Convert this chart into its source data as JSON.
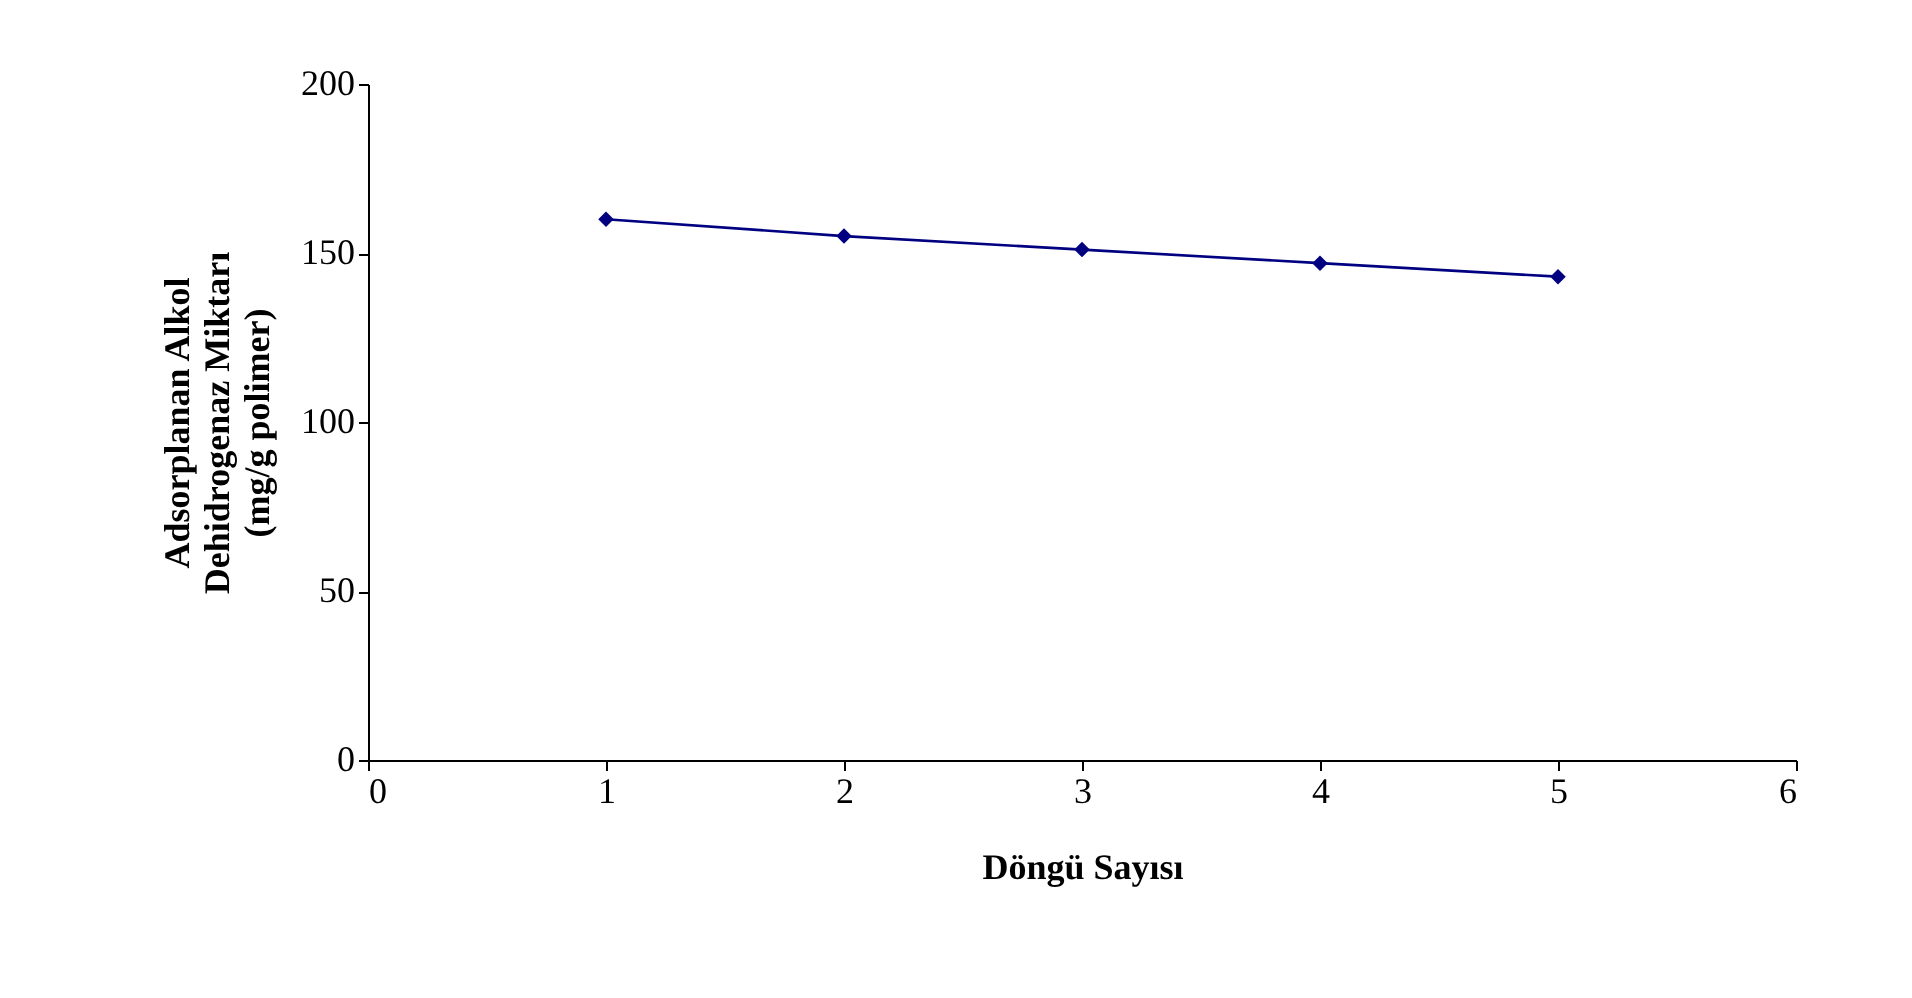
{
  "chart_data": {
    "type": "line",
    "xlabel": "Döngü Sayısı",
    "ylabel": "Adsorplanan Alkol\nDehidrogenaz Miktarı\n(mg/g polimer)",
    "x": [
      1,
      2,
      3,
      4,
      5
    ],
    "series": [
      {
        "color": "#000080",
        "values": [
          160,
          155,
          151,
          147,
          143
        ]
      }
    ],
    "xlim": [
      0,
      6
    ],
    "xticks": [
      0,
      1,
      2,
      3,
      4,
      5,
      6
    ],
    "ylim": [
      0,
      200
    ],
    "yticks": [
      0,
      50,
      100,
      150,
      200
    ],
    "grid": false,
    "legend": false,
    "marker": "diamond",
    "line_style": "solid"
  }
}
